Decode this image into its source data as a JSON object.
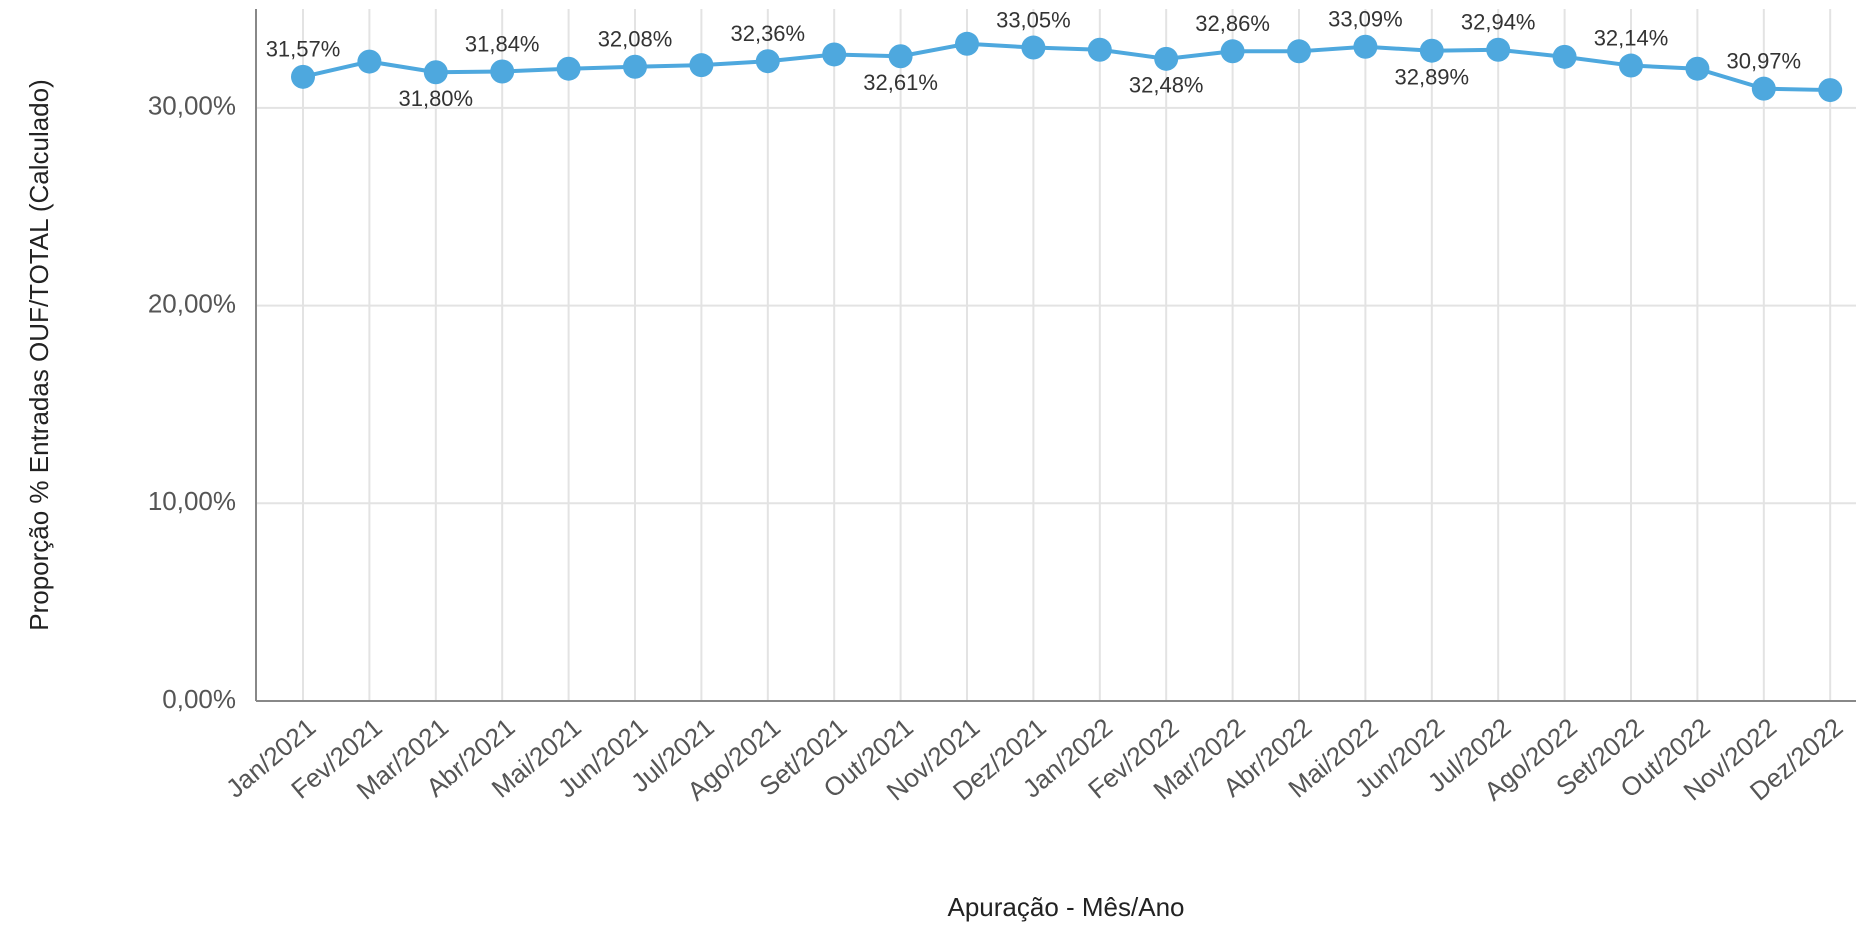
{
  "chart_data": {
    "type": "line",
    "x_label": "Apuração - Mês/Ano",
    "y_label": "Proporção % Entradas OUF/TOTAL (Calculado)",
    "categories": [
      "Jan/2021",
      "Fev/2021",
      "Mar/2021",
      "Abr/2021",
      "Mai/2021",
      "Jun/2021",
      "Jul/2021",
      "Ago/2021",
      "Set/2021",
      "Out/2021",
      "Nov/2021",
      "Dez/2021",
      "Jan/2022",
      "Fev/2022",
      "Mar/2022",
      "Abr/2022",
      "Mai/2022",
      "Jun/2022",
      "Jul/2022",
      "Ago/2022",
      "Set/2022",
      "Out/2022",
      "Nov/2022",
      "Dez/2022"
    ],
    "values": [
      31.57,
      32.34,
      31.8,
      31.84,
      31.98,
      32.08,
      32.16,
      32.36,
      32.7,
      32.61,
      33.24,
      33.05,
      32.94,
      32.48,
      32.86,
      32.86,
      33.09,
      32.89,
      32.94,
      32.58,
      32.14,
      31.98,
      30.97,
      30.9
    ],
    "value_labels": [
      "31,57%",
      null,
      "31,80%",
      "31,84%",
      null,
      "32,08%",
      null,
      "32,36%",
      null,
      "32,61%",
      null,
      "33,05%",
      null,
      "32,48%",
      "32,86%",
      null,
      "33,09%",
      "32,89%",
      "32,94%",
      null,
      "32,14%",
      null,
      "30,97%",
      null
    ],
    "color": "#4ea8de",
    "ylim": [
      0,
      35
    ],
    "yticks": [
      {
        "value": 0,
        "label": "0,00%"
      },
      {
        "value": 10,
        "label": "10,00%"
      },
      {
        "value": 20,
        "label": "20,00%"
      },
      {
        "value": 30,
        "label": "30,00%"
      }
    ],
    "grid": true
  }
}
